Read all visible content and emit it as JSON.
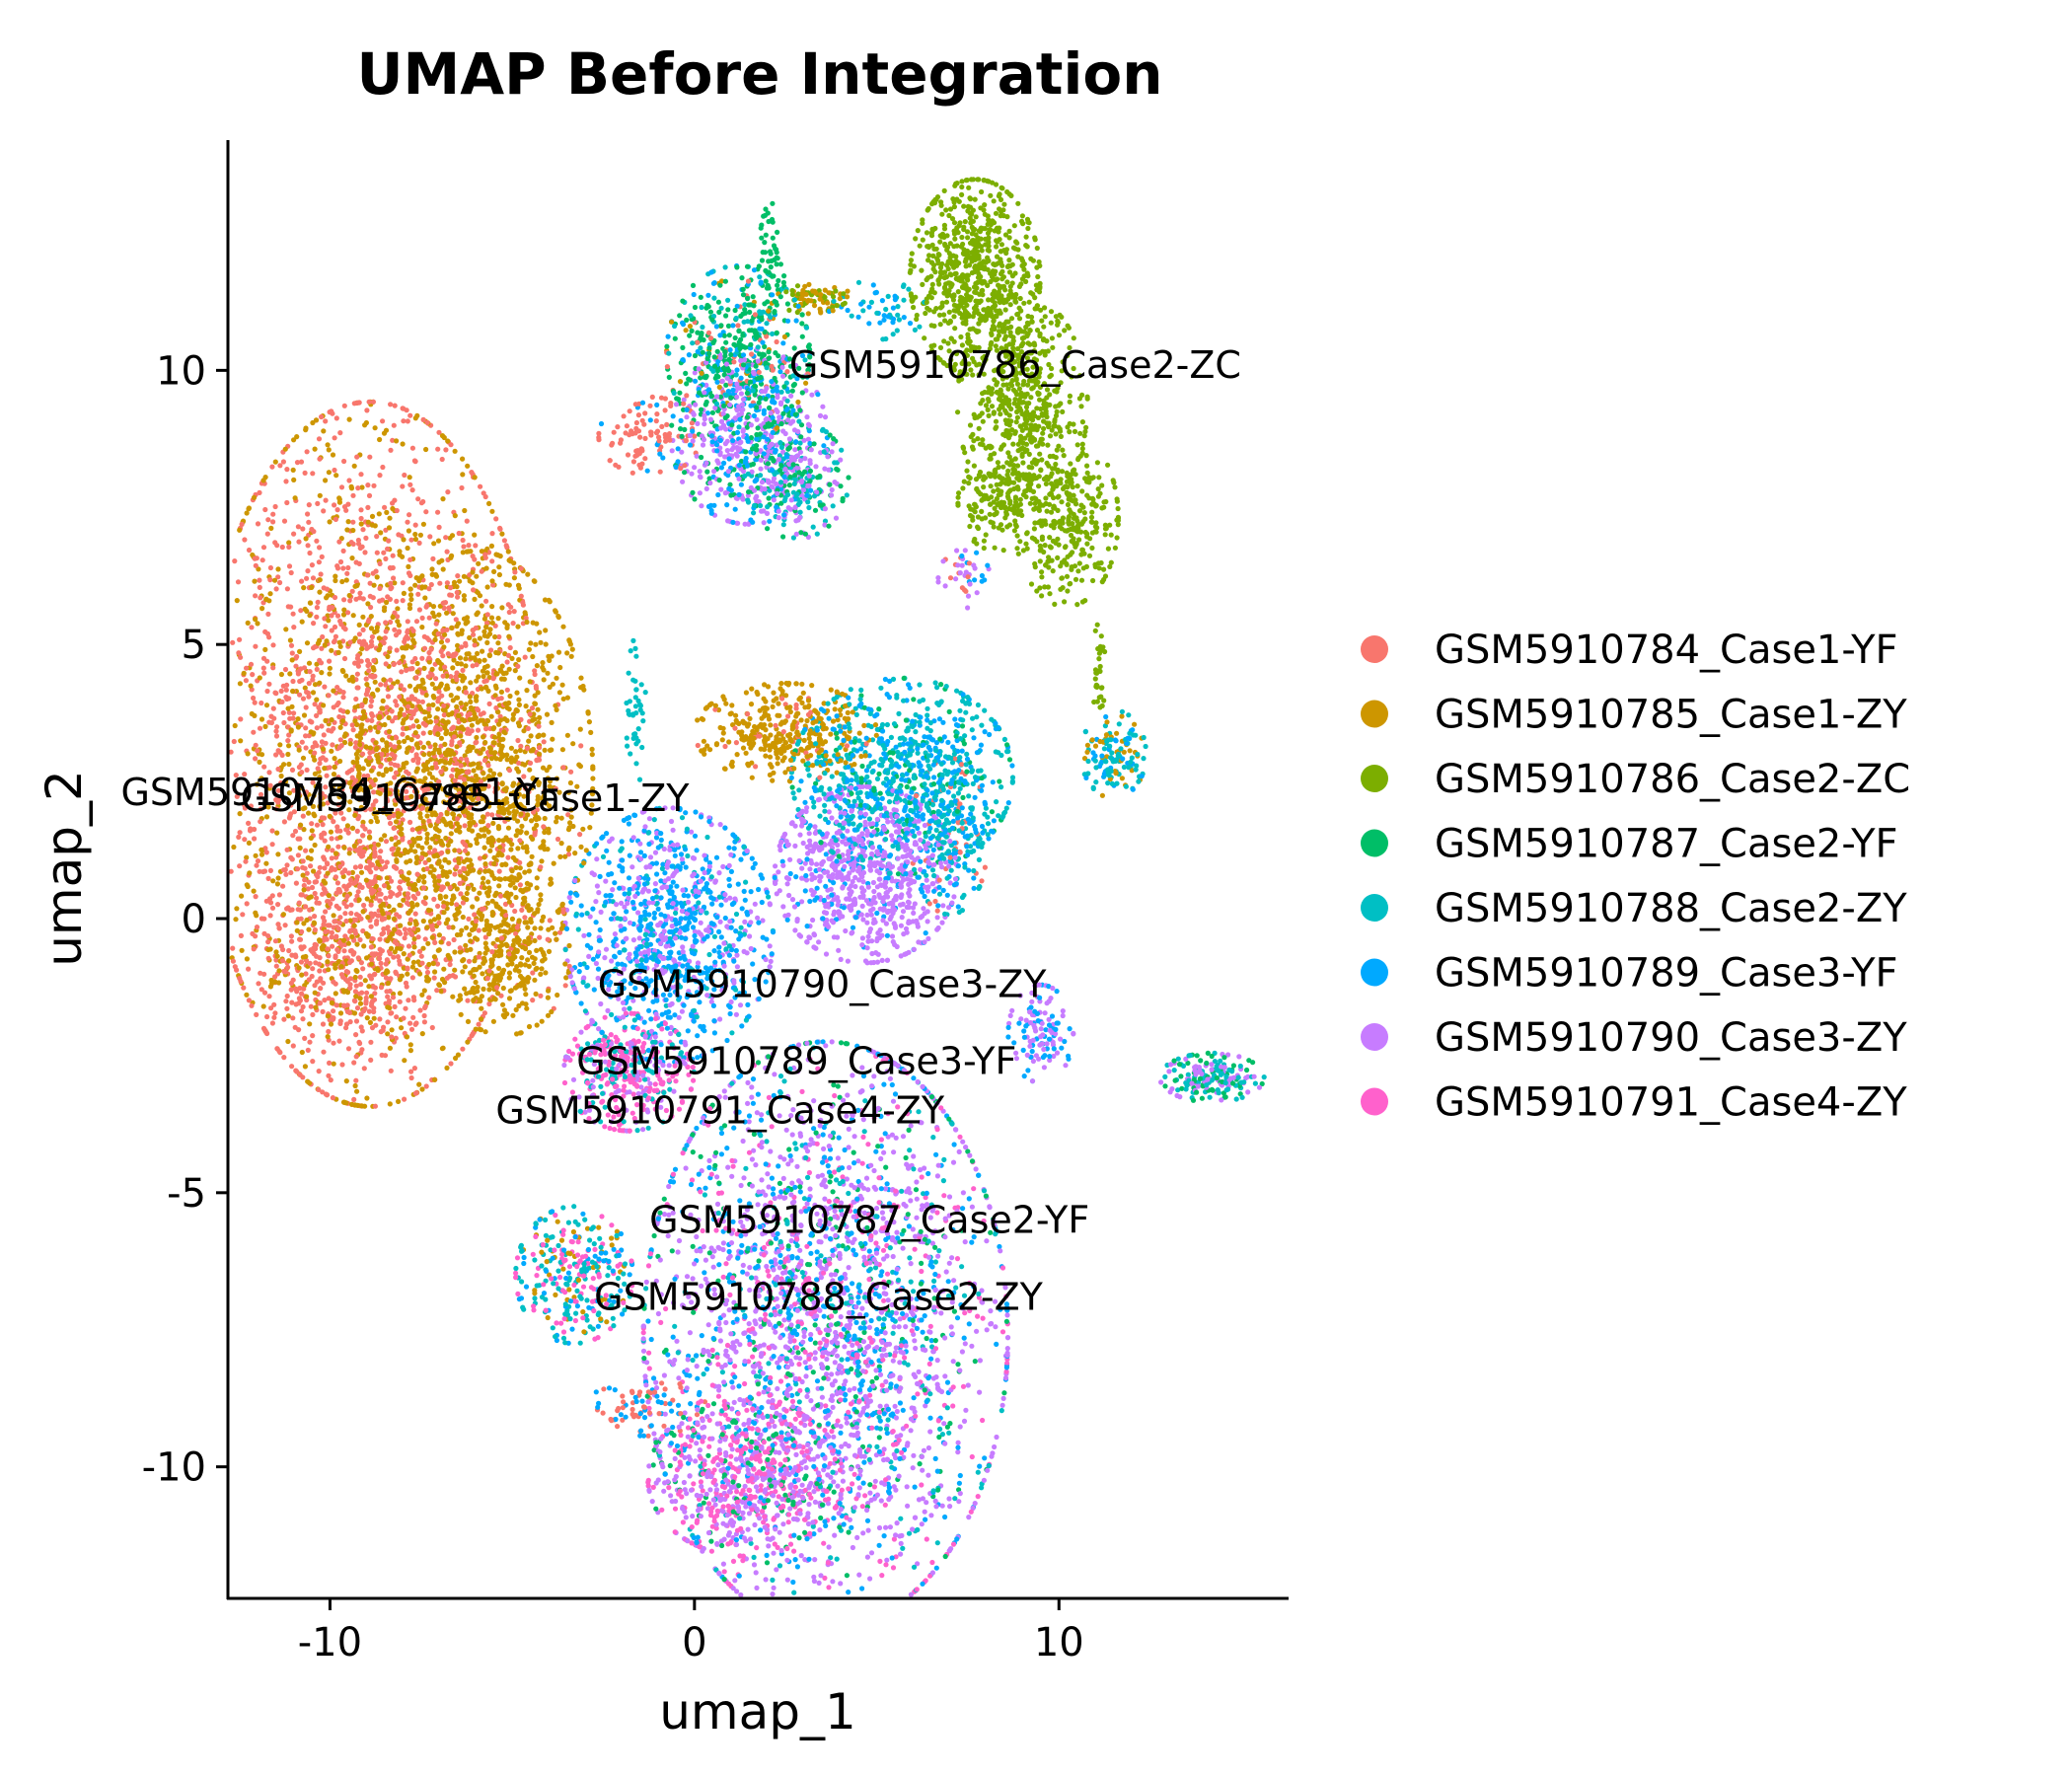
{
  "chart_data": {
    "type": "scatter",
    "title": "UMAP Before Integration",
    "xlabel": "umap_1",
    "ylabel": "umap_2",
    "xlim": [
      -12.8,
      16.3
    ],
    "ylim": [
      -12.4,
      14.2
    ],
    "xticks": [
      -10,
      0,
      10
    ],
    "yticks": [
      10,
      5,
      0,
      -5,
      -10
    ],
    "xtick_labels": [
      "-10",
      "0",
      "10"
    ],
    "ytick_labels": [
      "10",
      "5",
      "0",
      "-5",
      "-10"
    ],
    "grid": false,
    "legend_position": "right",
    "series": [
      {
        "name": "GSM5910784_Case1-YF",
        "color": "#F8766D"
      },
      {
        "name": "GSM5910785_Case1-ZY",
        "color": "#CD9600"
      },
      {
        "name": "GSM5910786_Case2-ZC",
        "color": "#7CAE00"
      },
      {
        "name": "GSM5910787_Case2-YF",
        "color": "#00BE67"
      },
      {
        "name": "GSM5910788_Case2-ZY",
        "color": "#00BFC4"
      },
      {
        "name": "GSM5910789_Case3-YF",
        "color": "#00A9FF"
      },
      {
        "name": "GSM5910790_Case3-ZY",
        "color": "#C77CFF"
      },
      {
        "name": "GSM5910791_Case4-ZY",
        "color": "#FF61CC"
      }
    ],
    "cluster_labels": [
      {
        "text": "GSM5910784_Case1-YF",
        "x": -9.7,
        "y": 2.3
      },
      {
        "text": "GSM5910785_Case1-ZY",
        "x": -6.3,
        "y": 2.2
      },
      {
        "text": "GSM5910786_Case2-ZC",
        "x": 8.8,
        "y": 10.1
      },
      {
        "text": "GSM5910790_Case3-ZY",
        "x": 3.5,
        "y": -1.2
      },
      {
        "text": "GSM5910789_Case3-YF",
        "x": 2.8,
        "y": -2.6
      },
      {
        "text": "GSM5910791_Case4-ZY",
        "x": 0.7,
        "y": -3.5
      },
      {
        "text": "GSM5910787_Case2-YF",
        "x": 4.8,
        "y": -5.5
      },
      {
        "text": "GSM5910788_Case2-ZY",
        "x": 3.4,
        "y": -6.9
      }
    ],
    "clusters": [
      {
        "cx": -8.9,
        "cy": 3.0,
        "rx": 2.6,
        "ry": 3.6,
        "n": 2600,
        "mix": {
          "GSM5910784_Case1-YF": 0.6,
          "GSM5910785_Case1-ZY": 0.4
        }
      },
      {
        "cx": -6.0,
        "cy": 2.6,
        "rx": 1.8,
        "ry": 2.3,
        "n": 1300,
        "mix": {
          "GSM5910785_Case1-ZY": 0.85,
          "GSM5910784_Case1-YF": 0.15
        }
      },
      {
        "cx": -9.6,
        "cy": -0.7,
        "rx": 1.4,
        "ry": 1.1,
        "n": 500,
        "mix": {
          "GSM5910784_Case1-YF": 0.8,
          "GSM5910785_Case1-ZY": 0.2
        }
      },
      {
        "cx": -5.2,
        "cy": -0.7,
        "rx": 1.0,
        "ry": 0.8,
        "n": 240,
        "mix": {
          "GSM5910785_Case1-ZY": 0.9,
          "GSM5910784_Case1-YF": 0.1
        }
      },
      {
        "cx": 1.2,
        "cy": 10.3,
        "rx": 1.1,
        "ry": 0.9,
        "n": 500,
        "mix": {
          "GSM5910787_Case2-YF": 0.55,
          "GSM5910788_Case2-ZY": 0.15,
          "GSM5910789_Case3-YF": 0.15,
          "GSM5910785_Case1-ZY": 0.05,
          "GSM5910784_Case1-YF": 0.1
        }
      },
      {
        "cx": 1.5,
        "cy": 8.8,
        "rx": 1.2,
        "ry": 0.9,
        "n": 550,
        "mix": {
          "GSM5910790_Case3-ZY": 0.55,
          "GSM5910789_Case3-YF": 0.3,
          "GSM5910787_Case2-YF": 0.15
        }
      },
      {
        "cx": 2.8,
        "cy": 8.0,
        "rx": 0.8,
        "ry": 0.6,
        "n": 250,
        "mix": {
          "GSM5910788_Case2-ZY": 0.4,
          "GSM5910787_Case2-YF": 0.3,
          "GSM5910790_Case3-ZY": 0.3
        }
      },
      {
        "cx": 2.1,
        "cy": 11.8,
        "rx": 0.2,
        "ry": 0.7,
        "n": 60,
        "mix": {
          "GSM5910787_Case2-YF": 1.0
        }
      },
      {
        "cx": 3.3,
        "cy": 11.3,
        "rx": 0.6,
        "ry": 0.15,
        "n": 80,
        "mix": {
          "GSM5910785_Case1-ZY": 0.6,
          "GSM5910786_Case2-ZC": 0.4
        }
      },
      {
        "cx": -1.2,
        "cy": 8.8,
        "rx": 0.8,
        "ry": 0.4,
        "n": 100,
        "mix": {
          "GSM5910784_Case1-YF": 0.9,
          "GSM5910789_Case3-YF": 0.1
        }
      },
      {
        "cx": 5.0,
        "cy": 11.1,
        "rx": 0.8,
        "ry": 0.3,
        "n": 50,
        "mix": {
          "GSM5910788_Case2-ZY": 0.5,
          "GSM5910789_Case3-YF": 0.5
        }
      },
      {
        "cx": 7.7,
        "cy": 11.7,
        "rx": 1.0,
        "ry": 1.0,
        "n": 700,
        "mix": {
          "GSM5910786_Case2-ZC": 1.0
        }
      },
      {
        "cx": 9.0,
        "cy": 9.4,
        "rx": 1.0,
        "ry": 1.1,
        "n": 500,
        "mix": {
          "GSM5910786_Case2-ZC": 1.0
        }
      },
      {
        "cx": 10.2,
        "cy": 7.3,
        "rx": 0.8,
        "ry": 0.9,
        "n": 320,
        "mix": {
          "GSM5910786_Case2-ZC": 1.0
        }
      },
      {
        "cx": 8.3,
        "cy": 7.6,
        "rx": 0.6,
        "ry": 0.5,
        "n": 150,
        "mix": {
          "GSM5910786_Case2-ZC": 1.0
        }
      },
      {
        "cx": 7.4,
        "cy": 6.2,
        "rx": 0.4,
        "ry": 0.3,
        "n": 40,
        "mix": {
          "GSM5910790_Case3-ZY": 0.4,
          "GSM5910784_Case1-YF": 0.3,
          "GSM5910789_Case3-YF": 0.3
        }
      },
      {
        "cx": 11.1,
        "cy": 4.5,
        "rx": 0.1,
        "ry": 0.5,
        "n": 30,
        "mix": {
          "GSM5910786_Case2-ZC": 1.0
        }
      },
      {
        "cx": 11.5,
        "cy": 3.0,
        "rx": 0.5,
        "ry": 0.45,
        "n": 140,
        "mix": {
          "GSM5910788_Case2-ZY": 0.5,
          "GSM5910785_Case1-ZY": 0.25,
          "GSM5910789_Case3-YF": 0.25
        }
      },
      {
        "cx": 2.5,
        "cy": 3.4,
        "rx": 1.4,
        "ry": 0.5,
        "n": 360,
        "mix": {
          "GSM5910785_Case1-ZY": 0.9,
          "GSM5910784_Case1-YF": 0.1
        }
      },
      {
        "cx": 5.7,
        "cy": 2.6,
        "rx": 1.7,
        "ry": 1.0,
        "n": 800,
        "mix": {
          "GSM5910788_Case2-ZY": 0.55,
          "GSM5910789_Case3-YF": 0.3,
          "GSM5910787_Case2-YF": 0.15
        }
      },
      {
        "cx": 4.7,
        "cy": 0.8,
        "rx": 1.4,
        "ry": 0.9,
        "n": 750,
        "mix": {
          "GSM5910790_Case3-ZY": 0.85,
          "GSM5910789_Case3-YF": 0.15
        }
      },
      {
        "cx": 7.0,
        "cy": 1.5,
        "rx": 0.6,
        "ry": 0.8,
        "n": 200,
        "mix": {
          "GSM5910788_Case2-ZY": 0.4,
          "GSM5910789_Case3-YF": 0.4,
          "GSM5910784_Case1-YF": 0.2
        }
      },
      {
        "cx": -1.6,
        "cy": 3.7,
        "rx": 0.15,
        "ry": 0.8,
        "n": 40,
        "mix": {
          "GSM5910788_Case2-ZY": 1.0
        }
      },
      {
        "cx": -0.7,
        "cy": -0.3,
        "rx": 1.6,
        "ry": 1.3,
        "n": 1000,
        "mix": {
          "GSM5910789_Case3-YF": 0.55,
          "GSM5910790_Case3-ZY": 0.35,
          "GSM5910788_Case2-ZY": 0.1
        }
      },
      {
        "cx": -1.8,
        "cy": -2.8,
        "rx": 1.0,
        "ry": 0.6,
        "n": 350,
        "mix": {
          "GSM5910791_Case4-ZY": 0.6,
          "GSM5910790_Case3-ZY": 0.2,
          "GSM5910788_Case2-ZY": 0.2
        }
      },
      {
        "cx": 9.5,
        "cy": -2.1,
        "rx": 0.5,
        "ry": 0.5,
        "n": 120,
        "mix": {
          "GSM5910790_Case3-ZY": 0.6,
          "GSM5910789_Case3-YF": 0.4
        }
      },
      {
        "cx": 14.2,
        "cy": -2.9,
        "rx": 0.8,
        "ry": 0.25,
        "n": 180,
        "mix": {
          "GSM5910787_Case2-YF": 0.35,
          "GSM5910788_Case2-ZY": 0.35,
          "GSM5910790_Case3-ZY": 0.3
        }
      },
      {
        "cx": -3.3,
        "cy": -6.5,
        "rx": 0.9,
        "ry": 0.7,
        "n": 300,
        "mix": {
          "GSM5910788_Case2-ZY": 0.4,
          "GSM5910791_Case4-ZY": 0.3,
          "GSM5910785_Case1-ZY": 0.15,
          "GSM5910789_Case3-YF": 0.15
        }
      },
      {
        "cx": -1.3,
        "cy": -8.9,
        "rx": 0.9,
        "ry": 0.3,
        "n": 80,
        "mix": {
          "GSM5910784_Case1-YF": 0.5,
          "GSM5910789_Case3-YF": 0.5
        }
      },
      {
        "cx": 3.6,
        "cy": -7.6,
        "rx": 2.8,
        "ry": 3.0,
        "n": 2800,
        "mix": {
          "GSM5910790_Case3-ZY": 0.45,
          "GSM5910789_Case3-YF": 0.2,
          "GSM5910791_Case4-ZY": 0.15,
          "GSM5910787_Case2-YF": 0.1,
          "GSM5910788_Case2-ZY": 0.1
        }
      },
      {
        "cx": 1.4,
        "cy": -10.2,
        "rx": 1.5,
        "ry": 0.8,
        "n": 600,
        "mix": {
          "GSM5910791_Case4-ZY": 0.45,
          "GSM5910790_Case3-ZY": 0.45,
          "GSM5910787_Case2-YF": 0.1
        }
      }
    ]
  }
}
